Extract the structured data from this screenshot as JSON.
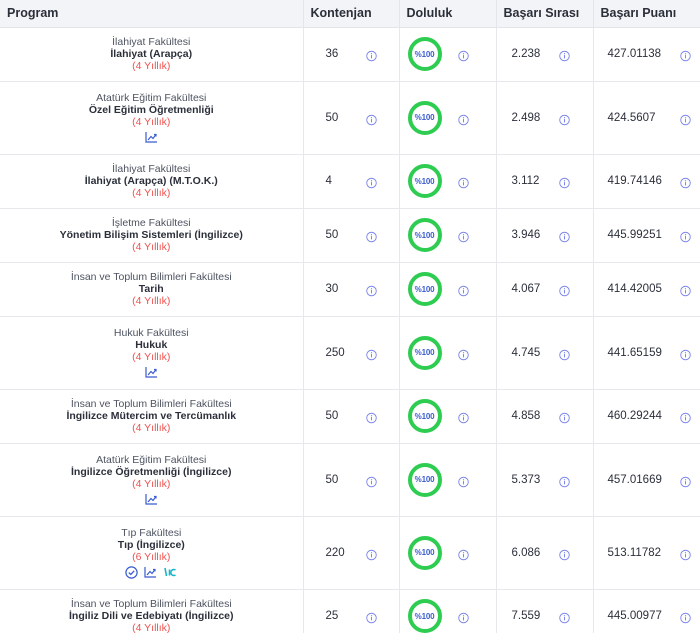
{
  "header": {
    "program": "Program",
    "kontenjan": "Kontenjan",
    "doluluk": "Doluluk",
    "basari_sirasi": "Başarı Sırası",
    "basari_puani": "Başarı Puanı"
  },
  "rows": [
    {
      "faculty": "İlahiyat Fakültesi",
      "department": "İlahiyat (Arapça)",
      "duration": "(4 Yıllık)",
      "kontenjan": "36",
      "doluluk": "%100",
      "sira": "2.238",
      "puan": "427.01138",
      "icons": []
    },
    {
      "faculty": "Atatürk Eğitim Fakültesi",
      "department": "Özel Eğitim Öğretmenliği",
      "duration": "(4 Yıllık)",
      "kontenjan": "50",
      "doluluk": "%100",
      "sira": "2.498",
      "puan": "424.5607",
      "icons": [
        "trend-chart-icon"
      ]
    },
    {
      "faculty": "İlahiyat Fakültesi",
      "department": "İlahiyat (Arapça) (M.T.O.K.)",
      "duration": "(4 Yıllık)",
      "kontenjan": "4",
      "doluluk": "%100",
      "sira": "3.112",
      "puan": "419.74146",
      "icons": []
    },
    {
      "faculty": "İşletme Fakültesi",
      "department": "Yönetim Bilişim Sistemleri (İngilizce)",
      "duration": "(4 Yıllık)",
      "kontenjan": "50",
      "doluluk": "%100",
      "sira": "3.946",
      "puan": "445.99251",
      "icons": []
    },
    {
      "faculty": "İnsan ve Toplum Bilimleri Fakültesi",
      "department": "Tarih",
      "duration": "(4 Yıllık)",
      "kontenjan": "30",
      "doluluk": "%100",
      "sira": "4.067",
      "puan": "414.42005",
      "icons": []
    },
    {
      "faculty": "Hukuk Fakültesi",
      "department": "Hukuk",
      "duration": "(4 Yıllık)",
      "kontenjan": "250",
      "doluluk": "%100",
      "sira": "4.745",
      "puan": "441.65159",
      "icons": [
        "trend-chart-icon"
      ]
    },
    {
      "faculty": "İnsan ve Toplum Bilimleri Fakültesi",
      "department": "İngilizce Mütercim ve Tercümanlık",
      "duration": "(4 Yıllık)",
      "kontenjan": "50",
      "doluluk": "%100",
      "sira": "4.858",
      "puan": "460.29244",
      "icons": []
    },
    {
      "faculty": "Atatürk Eğitim Fakültesi",
      "department": "İngilizce Öğretmenliği (İngilizce)",
      "duration": "(4 Yıllık)",
      "kontenjan": "50",
      "doluluk": "%100",
      "sira": "5.373",
      "puan": "457.01669",
      "icons": [
        "trend-chart-icon"
      ]
    },
    {
      "faculty": "Tıp Fakültesi",
      "department": "Tıp (İngilizce)",
      "duration": "(6 Yıllık)",
      "kontenjan": "220",
      "doluluk": "%100",
      "sira": "6.086",
      "puan": "513.11782",
      "icons": [
        "check-circle-icon",
        "trend-chart-icon",
        "yks-badge-icon"
      ]
    },
    {
      "faculty": "İnsan ve Toplum Bilimleri Fakültesi",
      "department": "İngiliz Dili ve Edebiyatı (İngilizce)",
      "duration": "(4 Yıllık)",
      "kontenjan": "25",
      "doluluk": "%100",
      "sira": "7.559",
      "puan": "445.00977",
      "icons": []
    }
  ],
  "colors": {
    "accent_blue": "#3a5bd0",
    "ring_green": "#2ecc50",
    "duration_red": "#ef5350",
    "info_purple": "#7c86e8"
  }
}
